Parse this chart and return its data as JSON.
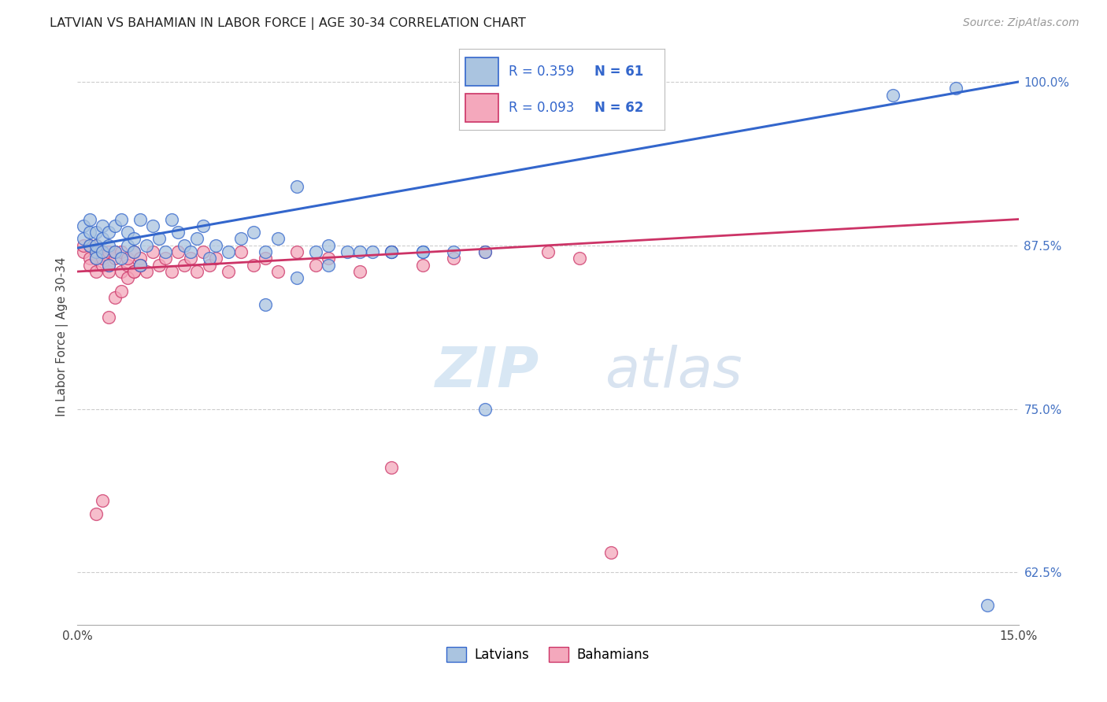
{
  "title": "LATVIAN VS BAHAMIAN IN LABOR FORCE | AGE 30-34 CORRELATION CHART",
  "source": "Source: ZipAtlas.com",
  "ylabel": "In Labor Force | Age 30-34",
  "R_latvian": 0.359,
  "N_latvian": 61,
  "R_bahamian": 0.093,
  "N_bahamian": 62,
  "latvian_color": "#aac4e0",
  "bahamian_color": "#f4a8bc",
  "latvian_line_color": "#3366cc",
  "bahamian_line_color": "#cc3366",
  "legend_label_latvians": "Latvians",
  "legend_label_bahamians": "Bahamians",
  "xmin": 0.0,
  "xmax": 0.15,
  "ymin": 0.585,
  "ymax": 1.025,
  "yticks": [
    0.625,
    0.75,
    0.875,
    1.0
  ],
  "ytick_labels": [
    "62.5%",
    "75.0%",
    "87.5%",
    "100.0%"
  ],
  "latvian_x": [
    0.001,
    0.001,
    0.002,
    0.002,
    0.002,
    0.003,
    0.003,
    0.003,
    0.003,
    0.004,
    0.004,
    0.004,
    0.005,
    0.005,
    0.005,
    0.006,
    0.006,
    0.007,
    0.007,
    0.008,
    0.008,
    0.009,
    0.009,
    0.01,
    0.01,
    0.011,
    0.012,
    0.013,
    0.014,
    0.015,
    0.016,
    0.017,
    0.018,
    0.019,
    0.02,
    0.021,
    0.022,
    0.024,
    0.026,
    0.028,
    0.03,
    0.032,
    0.035,
    0.038,
    0.04,
    0.043,
    0.047,
    0.05,
    0.055,
    0.065,
    0.03,
    0.035,
    0.04,
    0.045,
    0.05,
    0.055,
    0.06,
    0.065,
    0.13,
    0.14,
    0.145
  ],
  "latvian_y": [
    0.88,
    0.89,
    0.875,
    0.885,
    0.895,
    0.87,
    0.885,
    0.875,
    0.865,
    0.88,
    0.89,
    0.87,
    0.885,
    0.875,
    0.86,
    0.89,
    0.87,
    0.895,
    0.865,
    0.885,
    0.875,
    0.87,
    0.88,
    0.895,
    0.86,
    0.875,
    0.89,
    0.88,
    0.87,
    0.895,
    0.885,
    0.875,
    0.87,
    0.88,
    0.89,
    0.865,
    0.875,
    0.87,
    0.88,
    0.885,
    0.87,
    0.88,
    0.92,
    0.87,
    0.875,
    0.87,
    0.87,
    0.87,
    0.87,
    0.75,
    0.83,
    0.85,
    0.86,
    0.87,
    0.87,
    0.87,
    0.87,
    0.87,
    0.99,
    0.995,
    0.6
  ],
  "bahamian_x": [
    0.001,
    0.001,
    0.002,
    0.002,
    0.002,
    0.003,
    0.003,
    0.003,
    0.003,
    0.004,
    0.004,
    0.004,
    0.005,
    0.005,
    0.005,
    0.006,
    0.006,
    0.007,
    0.007,
    0.008,
    0.008,
    0.009,
    0.009,
    0.01,
    0.01,
    0.011,
    0.012,
    0.013,
    0.014,
    0.015,
    0.016,
    0.017,
    0.018,
    0.019,
    0.02,
    0.021,
    0.022,
    0.024,
    0.026,
    0.028,
    0.03,
    0.032,
    0.035,
    0.038,
    0.04,
    0.045,
    0.05,
    0.055,
    0.06,
    0.065,
    0.003,
    0.004,
    0.005,
    0.006,
    0.007,
    0.008,
    0.009,
    0.01,
    0.05,
    0.075,
    0.08,
    0.085
  ],
  "bahamian_y": [
    0.87,
    0.875,
    0.865,
    0.875,
    0.86,
    0.87,
    0.865,
    0.855,
    0.875,
    0.86,
    0.87,
    0.865,
    0.855,
    0.87,
    0.86,
    0.865,
    0.87,
    0.855,
    0.87,
    0.86,
    0.865,
    0.855,
    0.87,
    0.86,
    0.865,
    0.855,
    0.87,
    0.86,
    0.865,
    0.855,
    0.87,
    0.86,
    0.865,
    0.855,
    0.87,
    0.86,
    0.865,
    0.855,
    0.87,
    0.86,
    0.865,
    0.855,
    0.87,
    0.86,
    0.865,
    0.855,
    0.87,
    0.86,
    0.865,
    0.87,
    0.67,
    0.68,
    0.82,
    0.835,
    0.84,
    0.85,
    0.855,
    0.86,
    0.705,
    0.87,
    0.865,
    0.64
  ]
}
